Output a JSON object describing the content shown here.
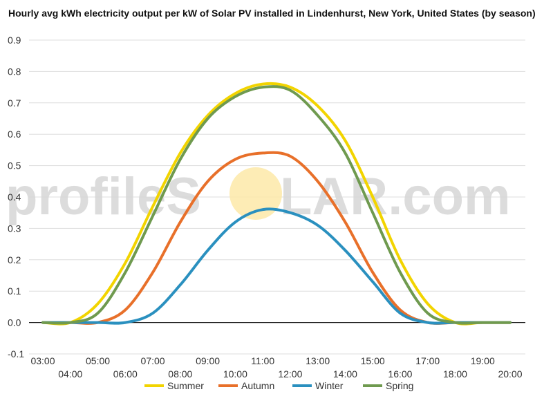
{
  "chart_data": {
    "type": "line",
    "title": "Hourly avg kWh electricity output per kW of Solar PV installed in Lindenhurst, New York, United States (by season)",
    "xlabel": "",
    "ylabel": "",
    "x": [
      "03:00",
      "04:00",
      "05:00",
      "06:00",
      "07:00",
      "08:00",
      "09:00",
      "10:00",
      "11:00",
      "12:00",
      "13:00",
      "14:00",
      "15:00",
      "16:00",
      "17:00",
      "18:00",
      "19:00",
      "20:00"
    ],
    "ylim": [
      -0.1,
      0.9
    ],
    "yticks": [
      "-0.1",
      "0.0",
      "0.1",
      "0.2",
      "0.3",
      "0.4",
      "0.5",
      "0.6",
      "0.7",
      "0.8",
      "0.9"
    ],
    "grid": true,
    "legend_position": "bottom",
    "series": [
      {
        "name": "Summer",
        "color": "#f2d400",
        "values": [
          0.0,
          0.0,
          0.06,
          0.19,
          0.37,
          0.54,
          0.66,
          0.73,
          0.76,
          0.75,
          0.69,
          0.58,
          0.4,
          0.2,
          0.06,
          0.0,
          0.0,
          0.0
        ]
      },
      {
        "name": "Autumn",
        "color": "#e8702a",
        "values": [
          0.0,
          0.0,
          0.0,
          0.04,
          0.16,
          0.32,
          0.45,
          0.52,
          0.54,
          0.53,
          0.45,
          0.32,
          0.16,
          0.04,
          0.0,
          0.0,
          0.0,
          0.0
        ]
      },
      {
        "name": "Winter",
        "color": "#2a90bf",
        "values": [
          0.0,
          0.0,
          0.0,
          0.0,
          0.03,
          0.12,
          0.23,
          0.32,
          0.36,
          0.35,
          0.31,
          0.23,
          0.13,
          0.03,
          0.0,
          0.0,
          0.0,
          0.0
        ]
      },
      {
        "name": "Spring",
        "color": "#6f9a4f",
        "values": [
          0.0,
          0.0,
          0.03,
          0.16,
          0.34,
          0.52,
          0.65,
          0.72,
          0.75,
          0.74,
          0.66,
          0.54,
          0.35,
          0.16,
          0.03,
          0.0,
          0.0,
          0.0
        ]
      }
    ]
  },
  "watermark": {
    "part1": "profileS",
    "part2": "LAR.com",
    "sun_color": "#fde9a8"
  }
}
